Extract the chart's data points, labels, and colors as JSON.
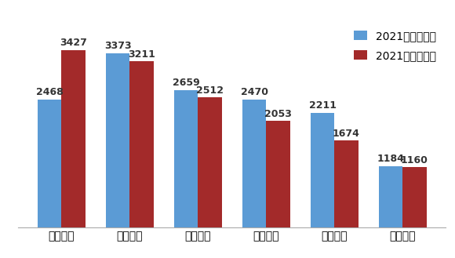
{
  "categories": [
    "工商银行",
    "交通银行",
    "建设银行",
    "农业银行",
    "中国银行",
    "邮储银行"
  ],
  "series": [
    {
      "name": "2021年第三季度",
      "values": [
        2468,
        3373,
        2659,
        2470,
        2211,
        1184
      ],
      "color": "#5B9BD5"
    },
    {
      "name": "2021年第四季度",
      "values": [
        3427,
        3211,
        2512,
        2053,
        1674,
        1160
      ],
      "color": "#A32A2A"
    }
  ],
  "ylim": [
    0,
    4000
  ],
  "bar_width": 0.35,
  "background_color": "#FFFFFF",
  "border_color": "#AAAAAA",
  "label_fontsize": 9,
  "legend_fontsize": 10,
  "tick_fontsize": 10
}
